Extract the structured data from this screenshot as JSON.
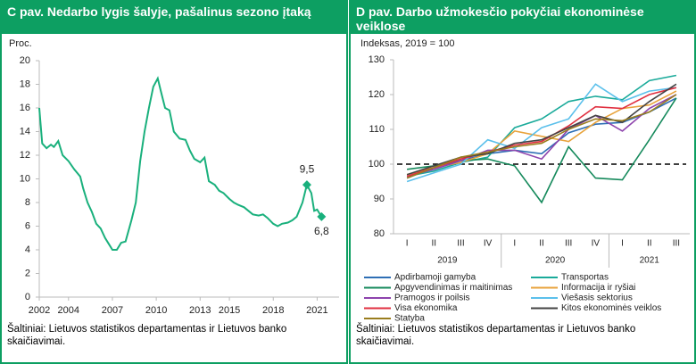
{
  "chart_data": [
    {
      "type": "line",
      "title": "C pav. Nedarbo lygis šalyje, pašalinus sezono įtaką",
      "y_label": "Proc.",
      "source": "Šaltiniai: Lietuvos statistikos departamentas ir Lietuvos banko skaičiavimai.",
      "color": "#19b07c",
      "x": [
        2002.0,
        2002.2,
        2002.5,
        2002.8,
        2003.0,
        2003.3,
        2003.6,
        2004.0,
        2004.4,
        2004.8,
        2005.0,
        2005.3,
        2005.6,
        2005.9,
        2006.2,
        2006.5,
        2006.8,
        2007.0,
        2007.3,
        2007.6,
        2007.9,
        2008.3,
        2008.6,
        2008.9,
        2009.2,
        2009.5,
        2009.8,
        2010.1,
        2010.3,
        2010.6,
        2010.9,
        2011.2,
        2011.6,
        2012.0,
        2012.3,
        2012.6,
        2013.0,
        2013.3,
        2013.6,
        2014.0,
        2014.3,
        2014.6,
        2015.0,
        2015.3,
        2015.6,
        2016.0,
        2016.3,
        2016.6,
        2017.0,
        2017.3,
        2017.6,
        2018.0,
        2018.3,
        2018.6,
        2019.0,
        2019.3,
        2019.6,
        2020.0,
        2020.3,
        2020.6,
        2020.8,
        2021.0,
        2021.3
      ],
      "values": [
        16,
        13,
        12.6,
        12.9,
        12.7,
        13.2,
        12.0,
        11.5,
        10.8,
        10.2,
        9.2,
        8.0,
        7.2,
        6.2,
        5.8,
        5.0,
        4.4,
        4.0,
        4.0,
        4.6,
        4.7,
        6.5,
        8.0,
        11.5,
        14.0,
        16.0,
        17.8,
        18.5,
        17.5,
        16.0,
        15.8,
        14.0,
        13.4,
        13.3,
        12.4,
        11.7,
        11.4,
        11.8,
        9.8,
        9.5,
        9.0,
        8.8,
        8.3,
        8.0,
        7.8,
        7.6,
        7.3,
        7.0,
        6.9,
        7.0,
        6.7,
        6.2,
        6.0,
        6.2,
        6.3,
        6.5,
        6.8,
        8.0,
        9.5,
        8.8,
        7.3,
        7.4,
        6.8
      ],
      "annotations": [
        {
          "label": "9,5",
          "x": 2020.3,
          "y": 9.5
        },
        {
          "label": "6,8",
          "x": 2021.3,
          "y": 6.8
        }
      ],
      "xlim": [
        2002,
        2022.5
      ],
      "xticks": [
        2002,
        2004,
        2007,
        2010,
        2013,
        2015,
        2018,
        2021
      ],
      "ylim": [
        0,
        20
      ],
      "yticks": [
        0,
        2,
        4,
        6,
        8,
        10,
        12,
        14,
        16,
        18,
        20
      ]
    },
    {
      "type": "line",
      "title": "D pav. Darbo užmokesčio pokyčiai ekonominėse veiklose",
      "y_label": "Indeksas, 2019 = 100",
      "source": "Šaltiniai: Lietuvos statistikos departamentas ir Lietuvos banko skaičiavimai.",
      "groups": [
        {
          "label": "2019",
          "categories": [
            "I",
            "II",
            "III",
            "IV"
          ]
        },
        {
          "label": "2020",
          "categories": [
            "I",
            "II",
            "III",
            "IV"
          ]
        },
        {
          "label": "2021",
          "categories": [
            "I",
            "II",
            "III"
          ]
        }
      ],
      "reference_line": 100,
      "ylim": [
        80,
        130
      ],
      "yticks": [
        80,
        90,
        100,
        110,
        120,
        130
      ],
      "series": [
        {
          "name": "Apdirbamoji gamyba",
          "color": "#2e6fb5",
          "values": [
            96,
            99,
            101,
            103,
            104,
            103,
            109,
            111.5,
            112,
            115,
            119
          ]
        },
        {
          "name": "Transportas",
          "color": "#1aaa9a",
          "values": [
            96.5,
            98,
            100.5,
            102,
            110.5,
            113,
            118,
            119.5,
            118.5,
            124,
            125.5
          ]
        },
        {
          "name": "Apgyvendinimas ir maitinimas",
          "color": "#168a5c",
          "values": [
            98.5,
            99.5,
            101,
            101.5,
            99.5,
            89,
            105,
            96,
            95.5,
            107,
            119
          ]
        },
        {
          "name": "Informacija ir ryšiai",
          "color": "#e8a33c",
          "values": [
            97,
            99,
            100.5,
            103,
            109.5,
            108,
            106.5,
            112,
            116,
            117,
            121
          ]
        },
        {
          "name": "Pramogos ir poilsis",
          "color": "#8e44ad",
          "values": [
            96.5,
            98.5,
            101,
            104,
            104,
            101.5,
            110,
            114,
            109.5,
            116,
            120
          ]
        },
        {
          "name": "Viešasis sektorius",
          "color": "#5bc0eb",
          "values": [
            95,
            97.5,
            100,
            107,
            104.5,
            110.5,
            113,
            123,
            118,
            121,
            122
          ]
        },
        {
          "name": "Visa ekonomika",
          "color": "#e03040",
          "values": [
            96.5,
            99,
            101.5,
            103.5,
            105.5,
            106.5,
            111,
            116.5,
            116,
            120,
            122
          ]
        },
        {
          "name": "Kitos ekonominės veiklos",
          "color": "#444444",
          "values": [
            97,
            99.5,
            102,
            103,
            106,
            107,
            110.5,
            114,
            112,
            118,
            123
          ]
        },
        {
          "name": "Statyba",
          "color": "#9a7d1e",
          "values": [
            96,
            99,
            102,
            103.5,
            105,
            106,
            110,
            113,
            112.5,
            115,
            120
          ]
        }
      ]
    }
  ]
}
